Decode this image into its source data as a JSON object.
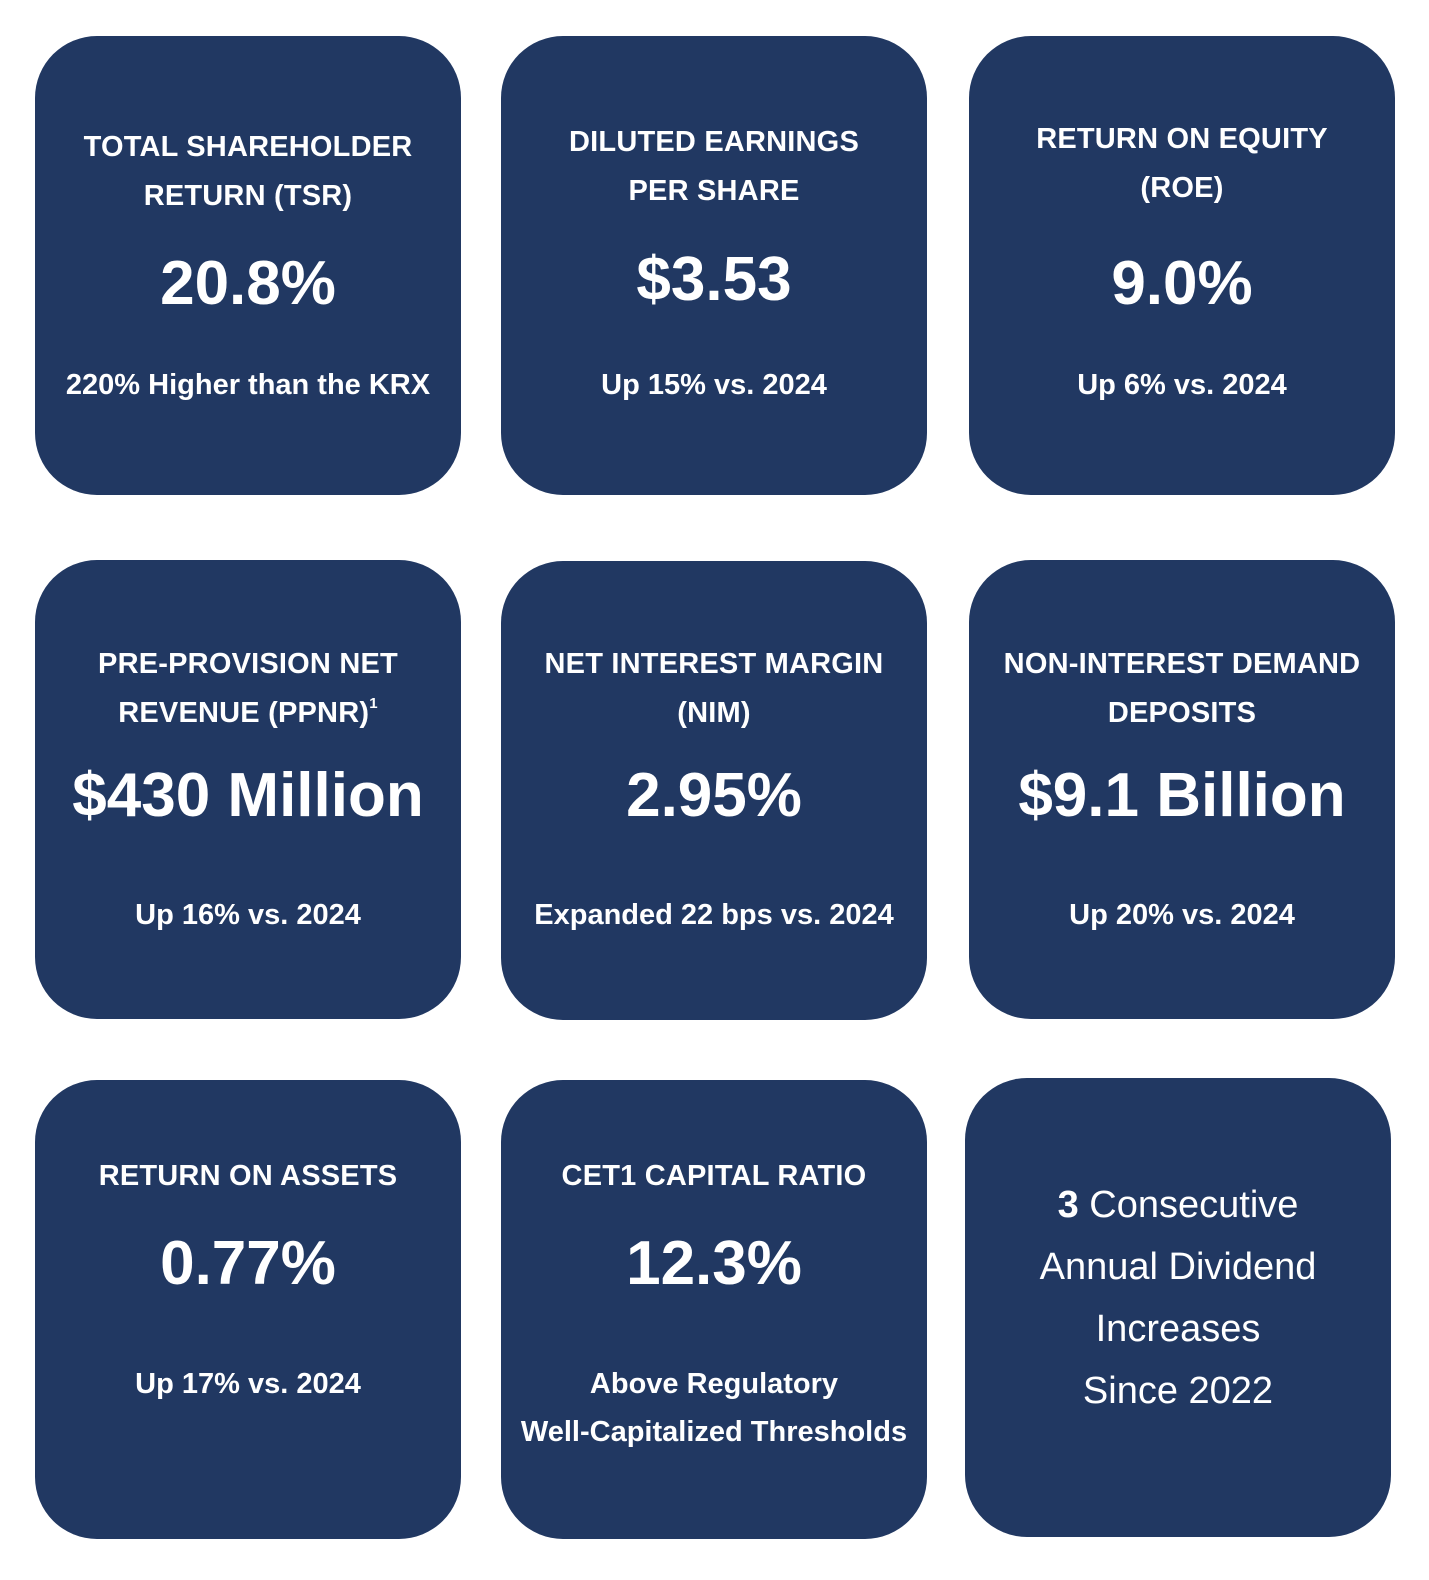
{
  "cards": [
    {
      "title_line1": "TOTAL SHAREHOLDER",
      "title_line2": "RETURN (TSR)",
      "value": "20.8%",
      "subtitle": "220% Higher than the KRX"
    },
    {
      "title_line1": "DILUTED EARNINGS",
      "title_line2": "PER SHARE",
      "value": "$3.53",
      "subtitle": "Up 15% vs. 2024"
    },
    {
      "title_line1": "RETURN ON EQUITY",
      "title_line2": "(ROE)",
      "value": "9.0%",
      "subtitle": "Up 6% vs. 2024"
    },
    {
      "title_line1": "PRE-PROVISION NET",
      "title_line2": "REVENUE (PPNR)",
      "footnote": "1",
      "value": "$430 Million",
      "subtitle": "Up 16% vs. 2024"
    },
    {
      "title_line1": "NET INTEREST MARGIN",
      "title_line2": "(NIM)",
      "value": "2.95%",
      "subtitle": "Expanded 22 bps vs. 2024"
    },
    {
      "title_line1": "NON-INTEREST DEMAND",
      "title_line2": "DEPOSITS",
      "value": "$9.1 Billion",
      "subtitle": "Up 20% vs. 2024"
    },
    {
      "title_line1": "RETURN ON ASSETS",
      "value": "0.77%",
      "subtitle": "Up 17% vs. 2024"
    },
    {
      "title_line1": "CET1 CAPITAL RATIO",
      "value": "12.3%",
      "subtitle_line1": "Above Regulatory",
      "subtitle_line2": "Well-Capitalized Thresholds"
    },
    {
      "number": "3",
      "line1_rest": " Consecutive",
      "line2": "Annual Dividend",
      "line3": "Increases",
      "line4": "Since 2022"
    }
  ],
  "colors": {
    "card_background": "#213862",
    "text": "#ffffff",
    "page_background": "#ffffff"
  }
}
